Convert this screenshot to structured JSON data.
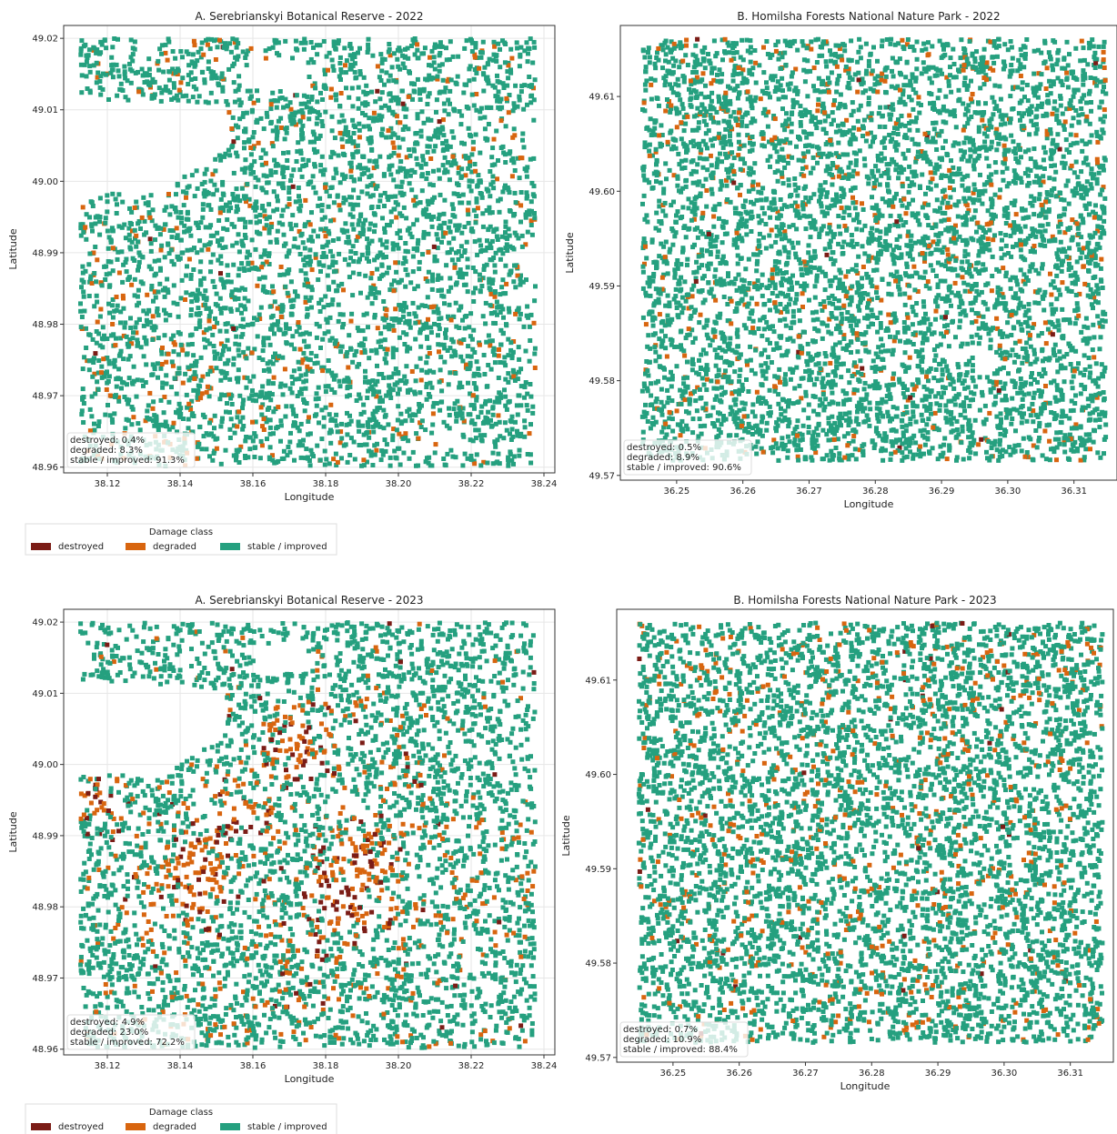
{
  "colors": {
    "destroyed": "#7b1c16",
    "degraded": "#d8650f",
    "stable": "#25a07f",
    "grid": "#e6e6e6",
    "axis": "#333333"
  },
  "legend": {
    "title": "Damage class",
    "items": [
      {
        "label": "destroyed",
        "color": "#7b1c16"
      },
      {
        "label": "degraded",
        "color": "#d8650f"
      },
      {
        "label": "stable / improved",
        "color": "#25a07f"
      }
    ]
  },
  "chart_data": [
    {
      "type": "scatter",
      "title": "A. Serebrianskyi Botanical Reserve - 2022",
      "xlabel": "Longitude",
      "ylabel": "Latitude",
      "xlim": [
        38.108,
        38.243
      ],
      "ylim": [
        48.9592,
        49.0218
      ],
      "xticks": [
        "38.12",
        "38.14",
        "38.16",
        "38.18",
        "38.20",
        "38.22",
        "38.24"
      ],
      "yticks": [
        "48.96",
        "48.97",
        "48.98",
        "48.99",
        "49.00",
        "49.01",
        "49.02"
      ],
      "grid": true,
      "point_extent": {
        "x": [
          38.112,
          38.237
        ],
        "y": [
          48.9605,
          49.0203
        ]
      },
      "shares": {
        "destroyed": 0.004,
        "degraded": 0.083,
        "stable": 0.913
      },
      "annotation": [
        "destroyed: 0.4%",
        "degraded: 8.3%",
        "stable / improved: 91.3%"
      ]
    },
    {
      "type": "scatter",
      "title": "B. Homilsha Forests National Nature Park - 2022",
      "xlabel": "Longitude",
      "ylabel": "Latitude",
      "xlim": [
        36.2415,
        36.3165
      ],
      "ylim": [
        49.5695,
        49.6175
      ],
      "xticks": [
        "36.25",
        "36.26",
        "36.27",
        "36.28",
        "36.29",
        "36.30",
        "36.31"
      ],
      "yticks": [
        "49.57",
        "49.58",
        "49.59",
        "49.60",
        "49.61"
      ],
      "grid": false,
      "point_extent": {
        "x": [
          36.2445,
          36.3145
        ],
        "y": [
          49.5718,
          49.6163
        ]
      },
      "shares": {
        "destroyed": 0.005,
        "degraded": 0.089,
        "stable": 0.906
      },
      "annotation": [
        "destroyed: 0.5%",
        "degraded: 8.9%",
        "stable / improved: 90.6%"
      ]
    },
    {
      "type": "scatter",
      "title": "A. Serebrianskyi Botanical Reserve - 2023",
      "xlabel": "Longitude",
      "ylabel": "Latitude",
      "xlim": [
        38.108,
        38.243
      ],
      "ylim": [
        48.9592,
        49.0218
      ],
      "xticks": [
        "38.12",
        "38.14",
        "38.16",
        "38.18",
        "38.20",
        "38.22",
        "38.24"
      ],
      "yticks": [
        "48.96",
        "48.97",
        "48.98",
        "48.99",
        "49.00",
        "49.01",
        "49.02"
      ],
      "grid": true,
      "point_extent": {
        "x": [
          38.112,
          38.237
        ],
        "y": [
          48.9605,
          49.0203
        ]
      },
      "shares": {
        "destroyed": 0.049,
        "degraded": 0.23,
        "stable": 0.722
      },
      "annotation": [
        "destroyed: 4.9%",
        "degraded: 23.0%",
        "stable / improved: 72.2%"
      ]
    },
    {
      "type": "scatter",
      "title": "B. Homilsha Forests National Nature Park - 2023",
      "xlabel": "Longitude",
      "ylabel": "Latitude",
      "xlim": [
        36.2415,
        36.3165
      ],
      "ylim": [
        49.5695,
        49.6175
      ],
      "xticks": [
        "36.25",
        "36.26",
        "36.27",
        "36.28",
        "36.29",
        "36.30",
        "36.31"
      ],
      "yticks": [
        "49.57",
        "49.58",
        "49.59",
        "49.60",
        "49.61"
      ],
      "grid": false,
      "point_extent": {
        "x": [
          36.2445,
          36.3145
        ],
        "y": [
          49.5718,
          49.6163
        ]
      },
      "shares": {
        "destroyed": 0.007,
        "degraded": 0.109,
        "stable": 0.884
      },
      "annotation": [
        "destroyed: 0.7%",
        "degraded: 10.9%",
        "stable / improved: 88.4%"
      ]
    }
  ]
}
